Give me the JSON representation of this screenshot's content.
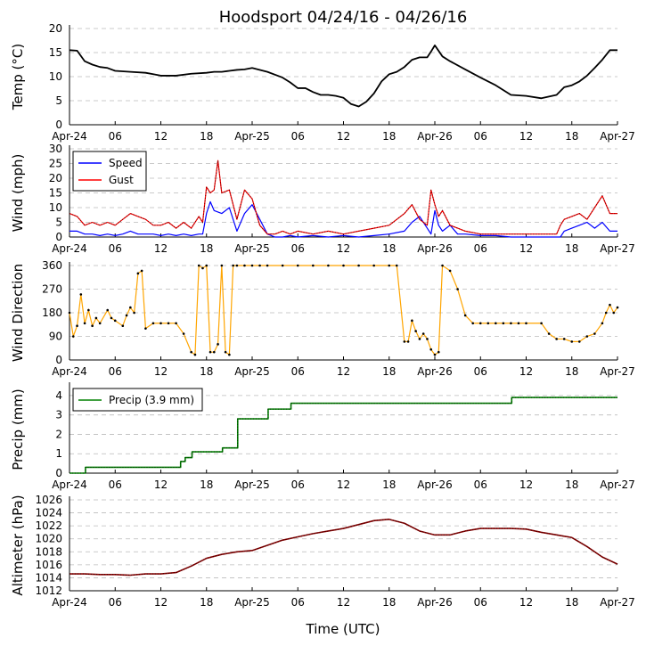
{
  "title": "Hoodsport 04/24/16 - 04/26/16",
  "xlabel": "Time (UTC)",
  "x_ticks": [
    "Apr-24",
    "06",
    "12",
    "18",
    "Apr-25",
    "06",
    "12",
    "18",
    "Apr-26",
    "06",
    "12",
    "18",
    "Apr-27"
  ],
  "colors": {
    "temp": "#000000",
    "speed": "#0000ff",
    "gust": "#ff0000",
    "direction": "#ffa500",
    "precip": "#008000",
    "altimeter": "#8b0000",
    "grid": "#bbbbbb"
  },
  "chart_data": [
    {
      "type": "line",
      "id": "temp",
      "ylabel": "Temp (°C)",
      "ylim": [
        0,
        20
      ],
      "yticks": [
        0,
        5,
        10,
        15,
        20
      ],
      "x_range_hours": [
        0,
        72
      ],
      "series": [
        {
          "name": "Temp",
          "x": [
            0,
            1,
            2,
            3,
            4,
            5,
            6,
            8,
            10,
            11,
            12,
            14,
            16,
            18,
            19,
            20,
            21,
            22,
            23,
            24,
            26,
            28,
            29,
            30,
            31,
            32,
            33,
            34,
            35,
            36,
            37,
            38,
            39,
            40,
            41,
            42,
            43,
            44,
            45,
            46,
            47,
            47.5,
            48,
            49,
            50,
            52,
            54,
            56,
            57,
            58,
            60,
            62,
            64,
            65,
            66,
            67,
            68,
            69,
            70,
            71,
            72
          ],
          "y": [
            15.5,
            15.4,
            13.2,
            12.5,
            12,
            11.8,
            11.2,
            11,
            10.8,
            10.5,
            10.2,
            10.2,
            10.6,
            10.8,
            11,
            11,
            11.2,
            11.4,
            11.5,
            11.8,
            11,
            9.8,
            8.8,
            7.6,
            7.6,
            6.8,
            6.2,
            6.2,
            6,
            5.6,
            4.3,
            3.8,
            4.8,
            6.5,
            9,
            10.5,
            11,
            12,
            13.5,
            14,
            14,
            15.2,
            16.5,
            14.2,
            13.2,
            11.5,
            9.8,
            8.2,
            7.2,
            6.2,
            6,
            5.5,
            6.2,
            7.8,
            8.2,
            9,
            10.2,
            11.8,
            13.5,
            15.5,
            15.5
          ]
        }
      ]
    },
    {
      "type": "line",
      "id": "wind",
      "ylabel": "Wind (mph)",
      "ylim": [
        0,
        30
      ],
      "yticks": [
        0,
        5,
        10,
        15,
        20,
        25,
        30
      ],
      "x_range_hours": [
        0,
        72
      ],
      "series": [
        {
          "name": "Speed",
          "x": [
            0,
            1,
            2,
            3,
            4,
            5,
            6,
            7,
            8,
            9,
            10,
            11,
            12,
            13,
            14,
            15,
            16,
            17,
            17.5,
            18,
            18.5,
            19,
            20,
            21,
            22,
            23,
            24,
            25,
            26,
            27,
            28,
            29,
            30,
            32,
            34,
            36,
            38,
            40,
            42,
            44,
            45,
            46,
            47,
            47.5,
            48,
            48.5,
            49,
            50,
            51,
            52,
            54,
            56,
            58,
            60,
            62,
            64,
            64.5,
            65,
            66,
            67,
            68,
            69,
            70,
            71,
            72
          ],
          "y": [
            2,
            2,
            1,
            1,
            0.5,
            1,
            0.5,
            1,
            2,
            1,
            1,
            1,
            0.5,
            1,
            0.5,
            1,
            0.5,
            1,
            1,
            8,
            12,
            9,
            8,
            10,
            2,
            8,
            11,
            6,
            1,
            0,
            0,
            0.5,
            0,
            0.5,
            0,
            0.5,
            0,
            0.5,
            1,
            2,
            5,
            7,
            3,
            1,
            9,
            4,
            2,
            4,
            1,
            1,
            0.5,
            0.5,
            0,
            0,
            0,
            0,
            0,
            2,
            3,
            4,
            5,
            3,
            5,
            2,
            2
          ]
        },
        {
          "name": "Gust",
          "x": [
            0,
            1,
            2,
            3,
            4,
            5,
            6,
            7,
            8,
            9,
            10,
            11,
            12,
            13,
            14,
            15,
            16,
            17,
            17.5,
            18,
            18.5,
            19,
            19.5,
            20,
            21,
            22,
            23,
            24,
            25,
            26,
            27,
            28,
            29,
            30,
            32,
            34,
            36,
            38,
            40,
            42,
            44,
            45,
            46,
            47,
            47.5,
            48,
            48.5,
            49,
            50,
            51,
            52,
            54,
            56,
            58,
            60,
            62,
            64,
            64.5,
            65,
            66,
            67,
            68,
            69,
            70,
            71,
            72
          ],
          "y": [
            8,
            7,
            4,
            5,
            4,
            5,
            4,
            6,
            8,
            7,
            6,
            4,
            4,
            5,
            3,
            5,
            3,
            7,
            5,
            17,
            15,
            16,
            26,
            15,
            16,
            6,
            16,
            13,
            4,
            1,
            1,
            2,
            1,
            2,
            1,
            2,
            1,
            2,
            3,
            4,
            8,
            11,
            6,
            4,
            16,
            11,
            7,
            9,
            4,
            3,
            2,
            1,
            1,
            1,
            1,
            1,
            1,
            4,
            6,
            7,
            8,
            6,
            10,
            14,
            8,
            8
          ]
        }
      ],
      "legend": [
        {
          "label": "Speed",
          "color": "#0000ff"
        },
        {
          "label": "Gust",
          "color": "#ff0000"
        }
      ]
    },
    {
      "type": "scatter",
      "id": "direction",
      "ylabel": "Wind Direction",
      "ylim": [
        0,
        360
      ],
      "yticks": [
        0,
        90,
        180,
        270,
        360
      ],
      "x_range_hours": [
        0,
        72
      ],
      "series": [
        {
          "name": "Direction",
          "x": [
            0,
            0.5,
            1,
            1.5,
            2,
            2.5,
            3,
            3.5,
            4,
            5,
            5.5,
            6,
            7,
            7.5,
            8,
            8.5,
            9,
            9.5,
            10,
            11,
            12,
            13,
            14,
            15,
            16,
            16.5,
            17,
            17.5,
            18,
            18.5,
            19,
            19.5,
            20,
            20.5,
            21,
            21.5,
            22,
            23,
            24,
            25,
            26,
            28,
            30,
            32,
            34,
            36,
            38,
            40,
            42,
            43,
            44,
            44.5,
            45,
            45.5,
            46,
            46.5,
            47,
            47.5,
            48,
            48.5,
            49,
            50,
            51,
            52,
            53,
            54,
            55,
            56,
            57,
            58,
            59,
            60,
            62,
            63,
            64,
            65,
            66,
            67,
            68,
            69,
            70,
            70.5,
            71,
            71.5,
            72
          ],
          "y": [
            180,
            90,
            130,
            250,
            140,
            190,
            130,
            160,
            140,
            190,
            160,
            150,
            130,
            170,
            200,
            180,
            330,
            340,
            120,
            140,
            140,
            140,
            140,
            100,
            30,
            20,
            360,
            350,
            360,
            30,
            30,
            60,
            360,
            30,
            20,
            360,
            360,
            360,
            360,
            360,
            360,
            360,
            360,
            360,
            360,
            360,
            360,
            360,
            360,
            360,
            70,
            70,
            150,
            110,
            80,
            100,
            80,
            40,
            20,
            30,
            360,
            340,
            270,
            170,
            140,
            140,
            140,
            140,
            140,
            140,
            140,
            140,
            140,
            100,
            80,
            80,
            70,
            70,
            90,
            100,
            140,
            180,
            210,
            180,
            200
          ]
        }
      ]
    },
    {
      "type": "line",
      "id": "precip",
      "ylabel": "Precip (mm)",
      "ylim": [
        0,
        4.5
      ],
      "yticks": [
        0,
        1,
        2,
        3,
        4
      ],
      "x_range_hours": [
        0,
        72
      ],
      "series": [
        {
          "name": "Precip (3.9 mm)",
          "x": [
            0,
            2,
            2.1,
            14.5,
            14.6,
            15,
            15.2,
            16,
            16.1,
            20,
            20.1,
            22,
            22.1,
            26,
            26.1,
            29,
            29.1,
            58,
            58.1,
            72
          ],
          "y": [
            0,
            0,
            0.3,
            0.3,
            0.6,
            0.6,
            0.8,
            0.8,
            1.1,
            1.1,
            1.3,
            1.3,
            2.8,
            2.8,
            3.3,
            3.3,
            3.6,
            3.6,
            3.9,
            3.9
          ]
        }
      ],
      "legend": [
        {
          "label": "Precip (3.9 mm)",
          "color": "#008000"
        }
      ]
    },
    {
      "type": "line",
      "id": "altimeter",
      "ylabel": "Altimeter (hPa)",
      "ylim": [
        1012,
        1026
      ],
      "yticks": [
        1012,
        1014,
        1016,
        1018,
        1020,
        1022,
        1024,
        1026
      ],
      "x_range_hours": [
        0,
        72
      ],
      "series": [
        {
          "name": "Altimeter",
          "x": [
            0,
            2,
            4,
            6,
            8,
            10,
            12,
            14,
            16,
            18,
            20,
            22,
            24,
            26,
            28,
            30,
            32,
            34,
            36,
            38,
            40,
            42,
            44,
            46,
            48,
            50,
            52,
            54,
            56,
            58,
            60,
            62,
            64,
            66,
            68,
            70,
            72
          ],
          "y": [
            1014.6,
            1014.6,
            1014.5,
            1014.5,
            1014.4,
            1014.6,
            1014.6,
            1014.8,
            1015.8,
            1017,
            1017.6,
            1018,
            1018.2,
            1019,
            1019.8,
            1020.3,
            1020.8,
            1021.2,
            1021.6,
            1022.2,
            1022.8,
            1023,
            1022.4,
            1021.2,
            1020.6,
            1020.6,
            1021.2,
            1021.6,
            1021.6,
            1021.6,
            1021.5,
            1021,
            1020.6,
            1020.2,
            1018.8,
            1017.2,
            1016.1
          ]
        }
      ]
    }
  ]
}
